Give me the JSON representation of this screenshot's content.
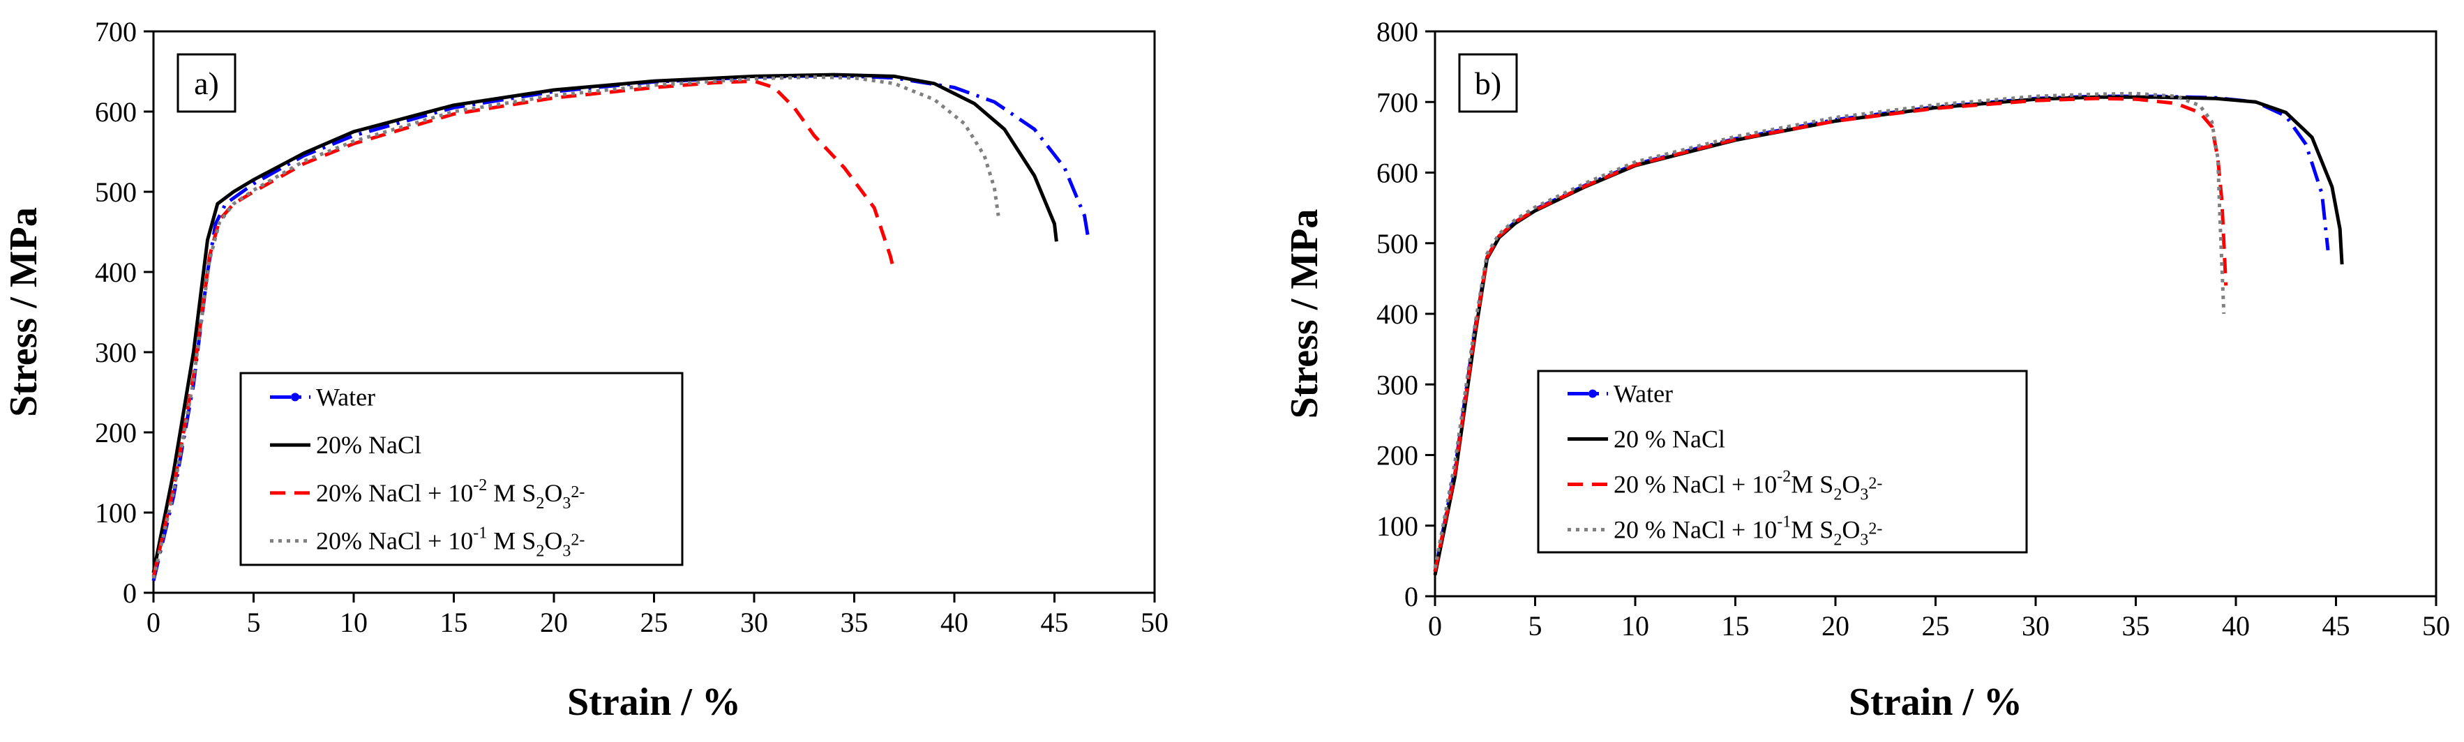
{
  "chart_data": [
    {
      "type": "line",
      "panel_label": "a)",
      "xlabel": "Strain / %",
      "ylabel": "Stress / MPa",
      "xlim": [
        0,
        50
      ],
      "ylim": [
        0,
        700
      ],
      "xticks": [
        0,
        5,
        10,
        15,
        20,
        25,
        30,
        35,
        40,
        45,
        50
      ],
      "yticks": [
        0,
        100,
        200,
        300,
        400,
        500,
        600,
        700
      ],
      "legend_position": "lower-left",
      "series": [
        {
          "name": "Water",
          "legend": {
            "text": "Water"
          },
          "color": "#0000ff",
          "style": "dash-dot",
          "points": [
            [
              0,
              15
            ],
            [
              1,
              120
            ],
            [
              2,
              260
            ],
            [
              2.7,
              400
            ],
            [
              3.1,
              460
            ],
            [
              3.6,
              485
            ],
            [
              5,
              510
            ],
            [
              7.5,
              545
            ],
            [
              10,
              570
            ],
            [
              15,
              605
            ],
            [
              20,
              625
            ],
            [
              25,
              637
            ],
            [
              30,
              643
            ],
            [
              34,
              645
            ],
            [
              37,
              642
            ],
            [
              40,
              630
            ],
            [
              42,
              612
            ],
            [
              44,
              578
            ],
            [
              45.5,
              530
            ],
            [
              46.5,
              470
            ],
            [
              46.7,
              440
            ]
          ]
        },
        {
          "name": "20% NaCl",
          "legend": {
            "text": "20% NaCl"
          },
          "color": "#000000",
          "style": "solid",
          "points": [
            [
              0,
              25
            ],
            [
              1,
              150
            ],
            [
              2,
              300
            ],
            [
              2.7,
              440
            ],
            [
              3.2,
              485
            ],
            [
              4,
              500
            ],
            [
              5,
              515
            ],
            [
              7.5,
              548
            ],
            [
              10,
              575
            ],
            [
              15,
              608
            ],
            [
              20,
              627
            ],
            [
              25,
              638
            ],
            [
              30,
              644
            ],
            [
              34,
              646
            ],
            [
              37,
              644
            ],
            [
              39,
              635
            ],
            [
              41,
              610
            ],
            [
              42.5,
              578
            ],
            [
              44,
              520
            ],
            [
              45,
              460
            ],
            [
              45.1,
              438
            ]
          ]
        },
        {
          "name": "20% NaCl + 10-2 M S2O32-",
          "legend": {
            "prefix": "20% NaCl + 10",
            "sup1": "-2",
            "mid": " M  S",
            "sub1": "2",
            "o": "O",
            "sub2": "3",
            "sup2": "2-"
          },
          "color": "#ff0000",
          "style": "dash",
          "points": [
            [
              0,
              20
            ],
            [
              1,
              130
            ],
            [
              2,
              270
            ],
            [
              2.8,
              420
            ],
            [
              3.3,
              465
            ],
            [
              4,
              485
            ],
            [
              5,
              500
            ],
            [
              7.5,
              535
            ],
            [
              10,
              560
            ],
            [
              15,
              597
            ],
            [
              20,
              617
            ],
            [
              25,
              630
            ],
            [
              28,
              636
            ],
            [
              30,
              638
            ],
            [
              31,
              630
            ],
            [
              32,
              605
            ],
            [
              33,
              570
            ],
            [
              34.5,
              530
            ],
            [
              36,
              480
            ],
            [
              36.8,
              420
            ],
            [
              36.9,
              410
            ]
          ]
        },
        {
          "name": "20% NaCl + 10-1 M S2O32-",
          "legend": {
            "prefix": "20% NaCl + 10",
            "sup1": "-1",
            "mid": " M  S",
            "sub1": "2",
            "o": "O",
            "sub2": "3",
            "sup2": "2-"
          },
          "color": "#808080",
          "style": "dot",
          "points": [
            [
              0,
              18
            ],
            [
              1,
              125
            ],
            [
              2,
              265
            ],
            [
              2.8,
              415
            ],
            [
              3.3,
              462
            ],
            [
              4,
              485
            ],
            [
              5,
              502
            ],
            [
              7.5,
              538
            ],
            [
              10,
              563
            ],
            [
              15,
              600
            ],
            [
              20,
              620
            ],
            [
              25,
              633
            ],
            [
              30,
              641
            ],
            [
              33,
              643
            ],
            [
              35,
              642
            ],
            [
              37,
              635
            ],
            [
              39,
              615
            ],
            [
              40.5,
              585
            ],
            [
              41.5,
              545
            ],
            [
              42,
              505
            ],
            [
              42.2,
              470
            ]
          ]
        }
      ]
    },
    {
      "type": "line",
      "panel_label": "b)",
      "xlabel": "Strain / %",
      "ylabel": "Stress / MPa",
      "xlim": [
        0,
        50
      ],
      "ylim": [
        0,
        800
      ],
      "xticks": [
        0,
        5,
        10,
        15,
        20,
        25,
        30,
        35,
        40,
        45,
        50
      ],
      "yticks": [
        0,
        100,
        200,
        300,
        400,
        500,
        600,
        700,
        800
      ],
      "legend_position": "lower-left",
      "series": [
        {
          "name": "Water",
          "legend": {
            "text": "Water"
          },
          "color": "#0000ff",
          "style": "dash-dot",
          "points": [
            [
              0,
              35
            ],
            [
              1,
              180
            ],
            [
              2,
              380
            ],
            [
              2.6,
              480
            ],
            [
              3.2,
              510
            ],
            [
              4,
              530
            ],
            [
              5,
              548
            ],
            [
              7.5,
              582
            ],
            [
              10,
              612
            ],
            [
              15,
              648
            ],
            [
              20,
              675
            ],
            [
              25,
              693
            ],
            [
              30,
              705
            ],
            [
              33,
              708
            ],
            [
              36,
              708
            ],
            [
              39,
              706
            ],
            [
              41,
              700
            ],
            [
              42.5,
              680
            ],
            [
              43.5,
              640
            ],
            [
              44.3,
              570
            ],
            [
              44.6,
              490
            ]
          ]
        },
        {
          "name": "20 % NaCl",
          "legend": {
            "text": "20 % NaCl"
          },
          "color": "#000000",
          "style": "solid",
          "points": [
            [
              0,
              30
            ],
            [
              1,
              170
            ],
            [
              2,
              370
            ],
            [
              2.6,
              478
            ],
            [
              3.2,
              508
            ],
            [
              4,
              528
            ],
            [
              5,
              546
            ],
            [
              7.5,
              580
            ],
            [
              10,
              610
            ],
            [
              15,
              646
            ],
            [
              20,
              673
            ],
            [
              25,
              692
            ],
            [
              30,
              704
            ],
            [
              33,
              707
            ],
            [
              36,
              707
            ],
            [
              39,
              705
            ],
            [
              41,
              700
            ],
            [
              42.5,
              685
            ],
            [
              43.8,
              650
            ],
            [
              44.8,
              580
            ],
            [
              45.2,
              520
            ],
            [
              45.3,
              470
            ]
          ]
        },
        {
          "name": "20 % NaCl + 10-2M S2O32-",
          "legend": {
            "prefix": "20 % NaCl + 10",
            "sup1": "-2",
            "mid": "M  S",
            "sub1": "2",
            "o": "O",
            "sub2": "3",
            "sup2": "2-"
          },
          "color": "#ff0000",
          "style": "dash",
          "points": [
            [
              0,
              35
            ],
            [
              1,
              175
            ],
            [
              2,
              375
            ],
            [
              2.6,
              480
            ],
            [
              3.2,
              510
            ],
            [
              4,
              530
            ],
            [
              5,
              547
            ],
            [
              7.5,
              581
            ],
            [
              10,
              611
            ],
            [
              15,
              647
            ],
            [
              20,
              673
            ],
            [
              25,
              691
            ],
            [
              30,
              702
            ],
            [
              33,
              705
            ],
            [
              35,
              704
            ],
            [
              37,
              698
            ],
            [
              38.2,
              685
            ],
            [
              38.8,
              665
            ],
            [
              39.1,
              620
            ],
            [
              39.3,
              560
            ],
            [
              39.4,
              500
            ],
            [
              39.5,
              440
            ]
          ]
        },
        {
          "name": "20 % NaCl + 10-1M S2O32-",
          "legend": {
            "prefix": "20 % NaCl + 10",
            "sup1": "-1",
            "mid": "M  S",
            "sub1": "2",
            "o": "O",
            "sub2": "3",
            "sup2": "2-"
          },
          "color": "#808080",
          "style": "dot",
          "points": [
            [
              0,
              40
            ],
            [
              1,
              190
            ],
            [
              2,
              385
            ],
            [
              2.6,
              485
            ],
            [
              3.2,
              513
            ],
            [
              4,
              533
            ],
            [
              5,
              551
            ],
            [
              7.5,
              585
            ],
            [
              10,
              615
            ],
            [
              15,
              651
            ],
            [
              20,
              678
            ],
            [
              25,
              696
            ],
            [
              30,
              708
            ],
            [
              33,
              711
            ],
            [
              35,
              712
            ],
            [
              37,
              708
            ],
            [
              38.2,
              695
            ],
            [
              38.8,
              672
            ],
            [
              39.1,
              620
            ],
            [
              39.2,
              540
            ],
            [
              39.3,
              470
            ],
            [
              39.4,
              400
            ]
          ]
        }
      ]
    }
  ]
}
